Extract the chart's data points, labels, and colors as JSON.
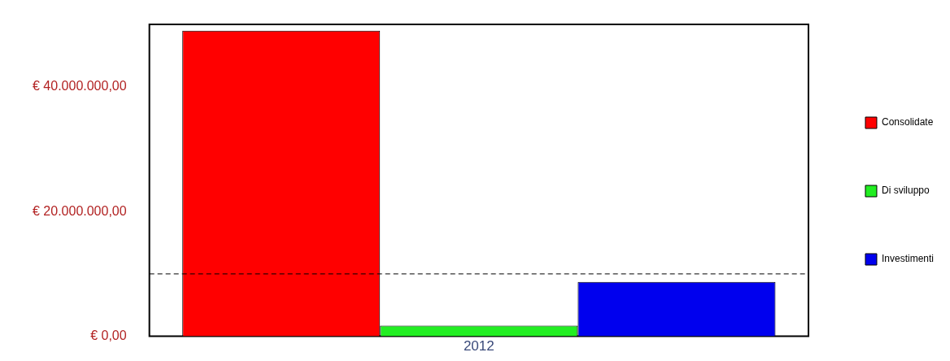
{
  "chart_data": {
    "type": "bar",
    "categories": [
      "2012"
    ],
    "series": [
      {
        "name": "Consolidate",
        "color": "#ff0000",
        "values": [
          49000000
        ]
      },
      {
        "name": "Di sviluppo",
        "color": "#22ee22",
        "values": [
          1700000
        ]
      },
      {
        "name": "Investimenti",
        "color": "#0000ee",
        "values": [
          8700000
        ]
      }
    ],
    "ylim": [
      0,
      50000000
    ],
    "yticks": [
      {
        "value": 0,
        "label": "€ 0,00"
      },
      {
        "value": 20000000,
        "label": "€ 20.000.000,00"
      },
      {
        "value": 40000000,
        "label": "€ 40.000.000,00"
      }
    ],
    "ref_lines": [
      {
        "axis": "y",
        "value": 10000000,
        "line_style": "dashed",
        "color": "#000000"
      }
    ],
    "grid": false,
    "legend": "right"
  }
}
